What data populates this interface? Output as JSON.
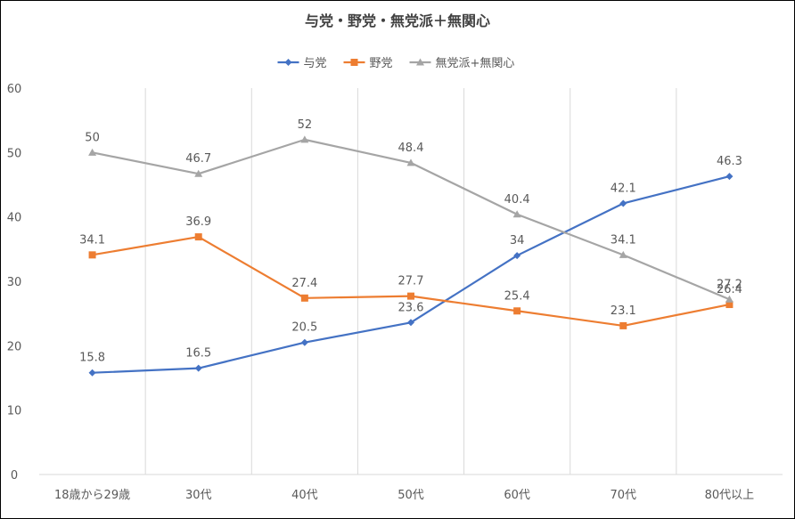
{
  "chart_data": {
    "type": "line",
    "title": "与党・野党・無党派＋無関心",
    "categories": [
      "18歳から29歳",
      "30代",
      "40代",
      "50代",
      "60代",
      "70代",
      "80代以上"
    ],
    "ylim": [
      0,
      60
    ],
    "yticks": [
      0,
      10,
      20,
      30,
      40,
      50,
      60
    ],
    "grid": "vertical",
    "legend_position": "top",
    "series": [
      {
        "name": "与党",
        "color": "#4472C4",
        "marker": "diamond",
        "values": [
          15.8,
          16.5,
          20.5,
          23.6,
          34,
          42.1,
          46.3
        ]
      },
      {
        "name": "野党",
        "color": "#ED7D31",
        "marker": "square",
        "values": [
          34.1,
          36.9,
          27.4,
          27.7,
          25.4,
          23.1,
          26.4
        ]
      },
      {
        "name": "無党派+無関心",
        "color": "#A5A5A5",
        "marker": "triangle",
        "values": [
          50,
          46.7,
          52,
          48.4,
          40.4,
          34.1,
          27.2
        ]
      }
    ]
  }
}
